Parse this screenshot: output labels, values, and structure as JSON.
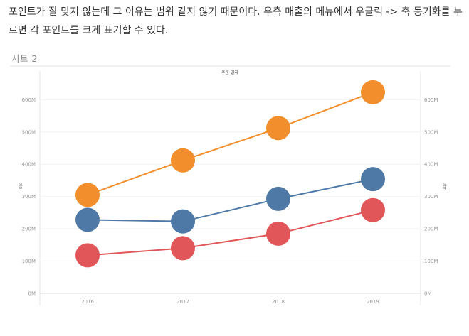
{
  "article": {
    "paragraph": "포인트가 잘 맞지 않는데 그 이유는 범위 같지 않기 때문이다. 우측 매출의 메뉴에서 우클릭 -> 축 동기화를 누르면 각 포인트를 크게 표기할 수 있다."
  },
  "sheet": {
    "title": "시트 2"
  },
  "chart_data": {
    "type": "line",
    "title": "주문 일자",
    "xlabel": "",
    "ylabel_left": "매출",
    "ylabel_right": "매출",
    "categories": [
      "2016",
      "2017",
      "2018",
      "2019"
    ],
    "ylim": [
      0,
      680
    ],
    "yticks": [
      0,
      100,
      200,
      300,
      400,
      500,
      600
    ],
    "ytick_labels": [
      "0M",
      "100M",
      "200M",
      "300M",
      "400M",
      "500M",
      "600M"
    ],
    "grid": true,
    "series": [
      {
        "color": "#f28e2b",
        "values": [
          305,
          412,
          512,
          623
        ]
      },
      {
        "color": "#4e79a7",
        "values": [
          228,
          223,
          293,
          354
        ]
      },
      {
        "color": "#e15759",
        "values": [
          118,
          140,
          185,
          258
        ]
      }
    ]
  }
}
